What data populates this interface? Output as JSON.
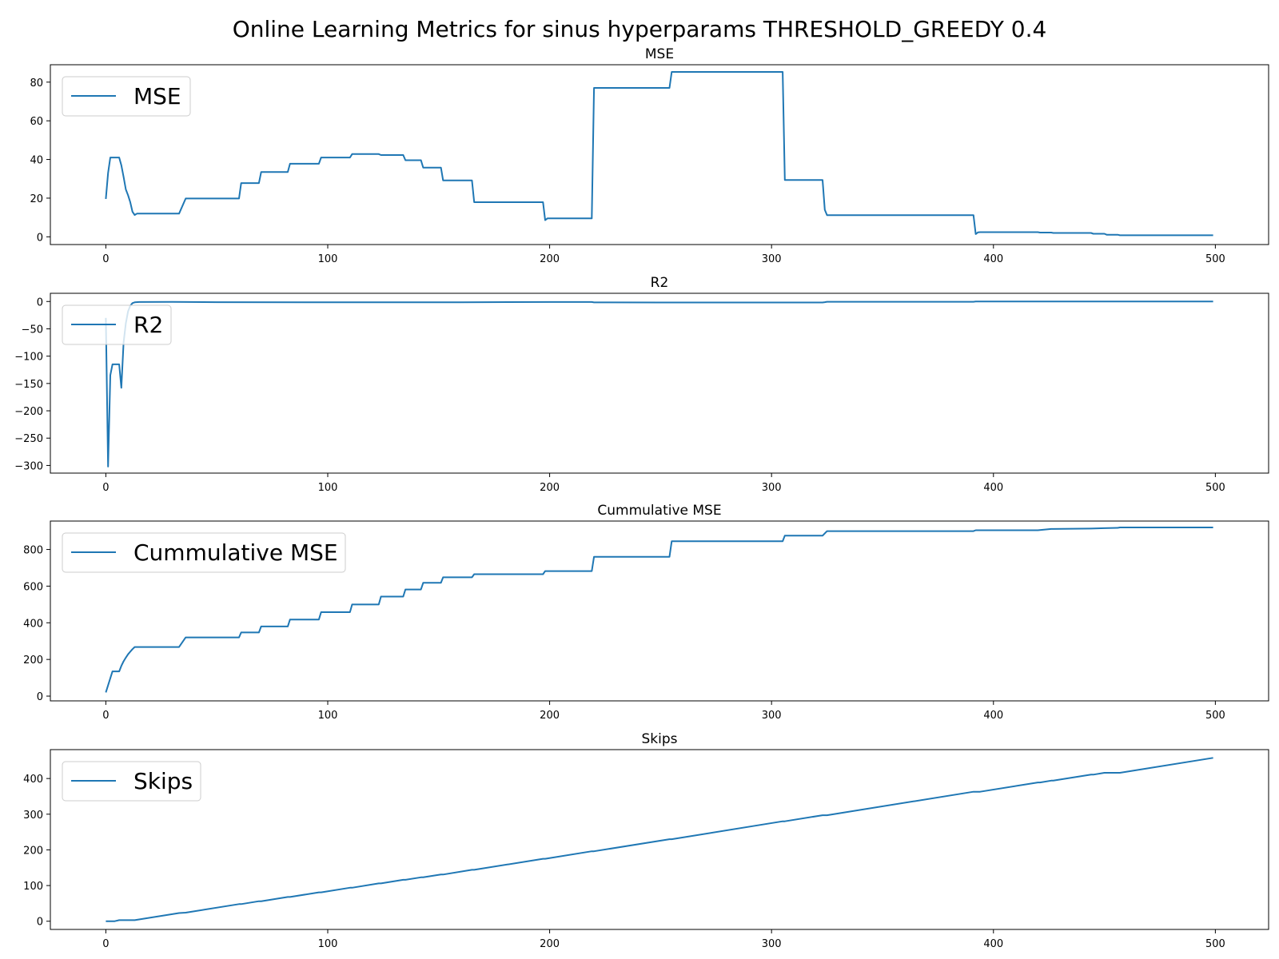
{
  "figure": {
    "title": "Online Learning Metrics for sinus hyperparams THRESHOLD_GREEDY 0.4",
    "line_color": "#1f77b4"
  },
  "chart_data": [
    {
      "type": "line",
      "title": "MSE",
      "xlabel": "",
      "ylabel": "",
      "xlim": [
        -25,
        524
      ],
      "ylim": [
        -4,
        89
      ],
      "xticks": [
        0,
        100,
        200,
        300,
        400,
        500
      ],
      "yticks": [
        0,
        20,
        40,
        60,
        80
      ],
      "grid": false,
      "legend_position": "upper left",
      "series": [
        {
          "name": "MSE",
          "x": [
            0,
            1,
            2,
            3,
            4,
            5,
            6,
            7,
            8,
            9,
            10,
            11,
            12,
            13,
            14,
            15,
            33,
            36,
            60,
            61,
            69,
            70,
            82,
            83,
            96,
            97,
            110,
            111,
            123,
            124,
            134,
            135,
            142,
            143,
            151,
            152,
            165,
            166,
            197,
            198,
            199,
            219,
            220,
            254,
            255,
            305,
            306,
            323,
            324,
            325,
            391,
            392,
            393,
            394,
            420,
            421,
            426,
            427,
            444,
            445,
            450,
            451,
            456,
            457,
            499
          ],
          "y": [
            19.6,
            33,
            41,
            41,
            41,
            41,
            41,
            37,
            31,
            24.5,
            21.5,
            18,
            13,
            11.3,
            12,
            12,
            12,
            19.8,
            19.8,
            27.8,
            27.8,
            33.5,
            33.5,
            37.8,
            37.8,
            41,
            41,
            42.8,
            42.8,
            42.3,
            42.3,
            39.6,
            39.6,
            35.8,
            35.8,
            29.2,
            29.2,
            17.9,
            17.9,
            8.6,
            9.5,
            9.5,
            77,
            77,
            85.3,
            85.3,
            29.4,
            29.4,
            14,
            11.2,
            11.2,
            1.4,
            2.3,
            2.4,
            2.4,
            2.2,
            2.2,
            2,
            2,
            1.6,
            1.6,
            1.1,
            1.1,
            0.8,
            0.8
          ]
        }
      ]
    },
    {
      "type": "line",
      "title": "R2",
      "xlabel": "",
      "ylabel": "",
      "xlim": [
        -25,
        524
      ],
      "ylim": [
        -314,
        15
      ],
      "xticks": [
        0,
        100,
        200,
        300,
        400,
        500
      ],
      "yticks": [
        0,
        -50,
        -100,
        -150,
        -200,
        -250,
        -300
      ],
      "grid": false,
      "legend_position": "upper left",
      "series": [
        {
          "name": "R2",
          "x": [
            0,
            1,
            2,
            3,
            4,
            5,
            6,
            7,
            8,
            9,
            10,
            11,
            12,
            13,
            15,
            30,
            50,
            100,
            160,
            200,
            219,
            220,
            250,
            300,
            323,
            324,
            325,
            391,
            392,
            450,
            499
          ],
          "y": [
            -30,
            -302,
            -135,
            -115,
            -115,
            -115,
            -115,
            -158,
            -75,
            -40,
            -18,
            -8,
            -3,
            -1.5,
            -1,
            -0.8,
            -1.2,
            -1.5,
            -1.4,
            -1,
            -1,
            -1.6,
            -1.8,
            -1.8,
            -1.8,
            -1.2,
            -0.5,
            -0.5,
            0,
            0,
            0
          ]
        }
      ]
    },
    {
      "type": "line",
      "title": "Cummulative MSE",
      "xlabel": "",
      "ylabel": "",
      "xlim": [
        -25,
        524
      ],
      "ylim": [
        -26,
        955
      ],
      "xticks": [
        0,
        100,
        200,
        300,
        400,
        500
      ],
      "yticks": [
        0,
        200,
        400,
        600,
        800
      ],
      "grid": false,
      "legend_position": "upper left",
      "series": [
        {
          "name": "Cummulative MSE",
          "x": [
            0,
            3,
            6,
            7,
            8,
            9,
            10,
            11,
            12,
            13,
            33,
            36,
            60,
            61,
            69,
            70,
            82,
            83,
            96,
            97,
            110,
            111,
            123,
            124,
            134,
            135,
            142,
            143,
            151,
            152,
            165,
            166,
            197,
            198,
            219,
            220,
            254,
            255,
            305,
            306,
            323,
            325,
            391,
            392,
            420,
            426,
            427,
            444,
            450,
            456,
            457,
            499
          ],
          "y": [
            20,
            135,
            135,
            165,
            190,
            210,
            228,
            242,
            256,
            268,
            268,
            320,
            320,
            347,
            347,
            380,
            380,
            418,
            418,
            458,
            458,
            500,
            500,
            543,
            543,
            582,
            582,
            618,
            618,
            648,
            648,
            665,
            665,
            682,
            682,
            760,
            760,
            845,
            845,
            875,
            875,
            900,
            900,
            905,
            905,
            912,
            912,
            914,
            916,
            918,
            920,
            920
          ]
        }
      ]
    },
    {
      "type": "line",
      "title": "Skips",
      "xlabel": "",
      "ylabel": "",
      "xlim": [
        -25,
        524
      ],
      "ylim": [
        -23,
        481
      ],
      "xticks": [
        0,
        100,
        200,
        300,
        400,
        500
      ],
      "yticks": [
        0,
        100,
        200,
        300,
        400
      ],
      "grid": false,
      "legend_position": "upper left",
      "series": [
        {
          "name": "Skips",
          "x": [
            0,
            4,
            6,
            7,
            8,
            13,
            33,
            36,
            60,
            61,
            69,
            70,
            82,
            83,
            96,
            97,
            110,
            111,
            123,
            124,
            134,
            135,
            142,
            143,
            151,
            152,
            165,
            166,
            197,
            198,
            219,
            220,
            254,
            255,
            305,
            306,
            323,
            325,
            391,
            392,
            393,
            394,
            420,
            421,
            426,
            427,
            444,
            445,
            450,
            451,
            456,
            457,
            499
          ],
          "y": [
            0,
            0,
            3,
            3,
            3,
            3,
            23,
            24,
            48,
            48,
            56,
            56,
            68,
            68,
            81,
            81,
            94,
            94,
            106,
            106,
            116,
            116,
            123,
            123,
            131,
            131,
            144,
            144,
            175,
            175,
            196,
            196,
            230,
            230,
            280,
            280,
            297,
            297,
            363,
            363,
            363,
            363,
            389,
            389,
            394,
            394,
            411,
            411,
            416,
            416,
            416,
            416,
            458
          ]
        }
      ]
    }
  ]
}
